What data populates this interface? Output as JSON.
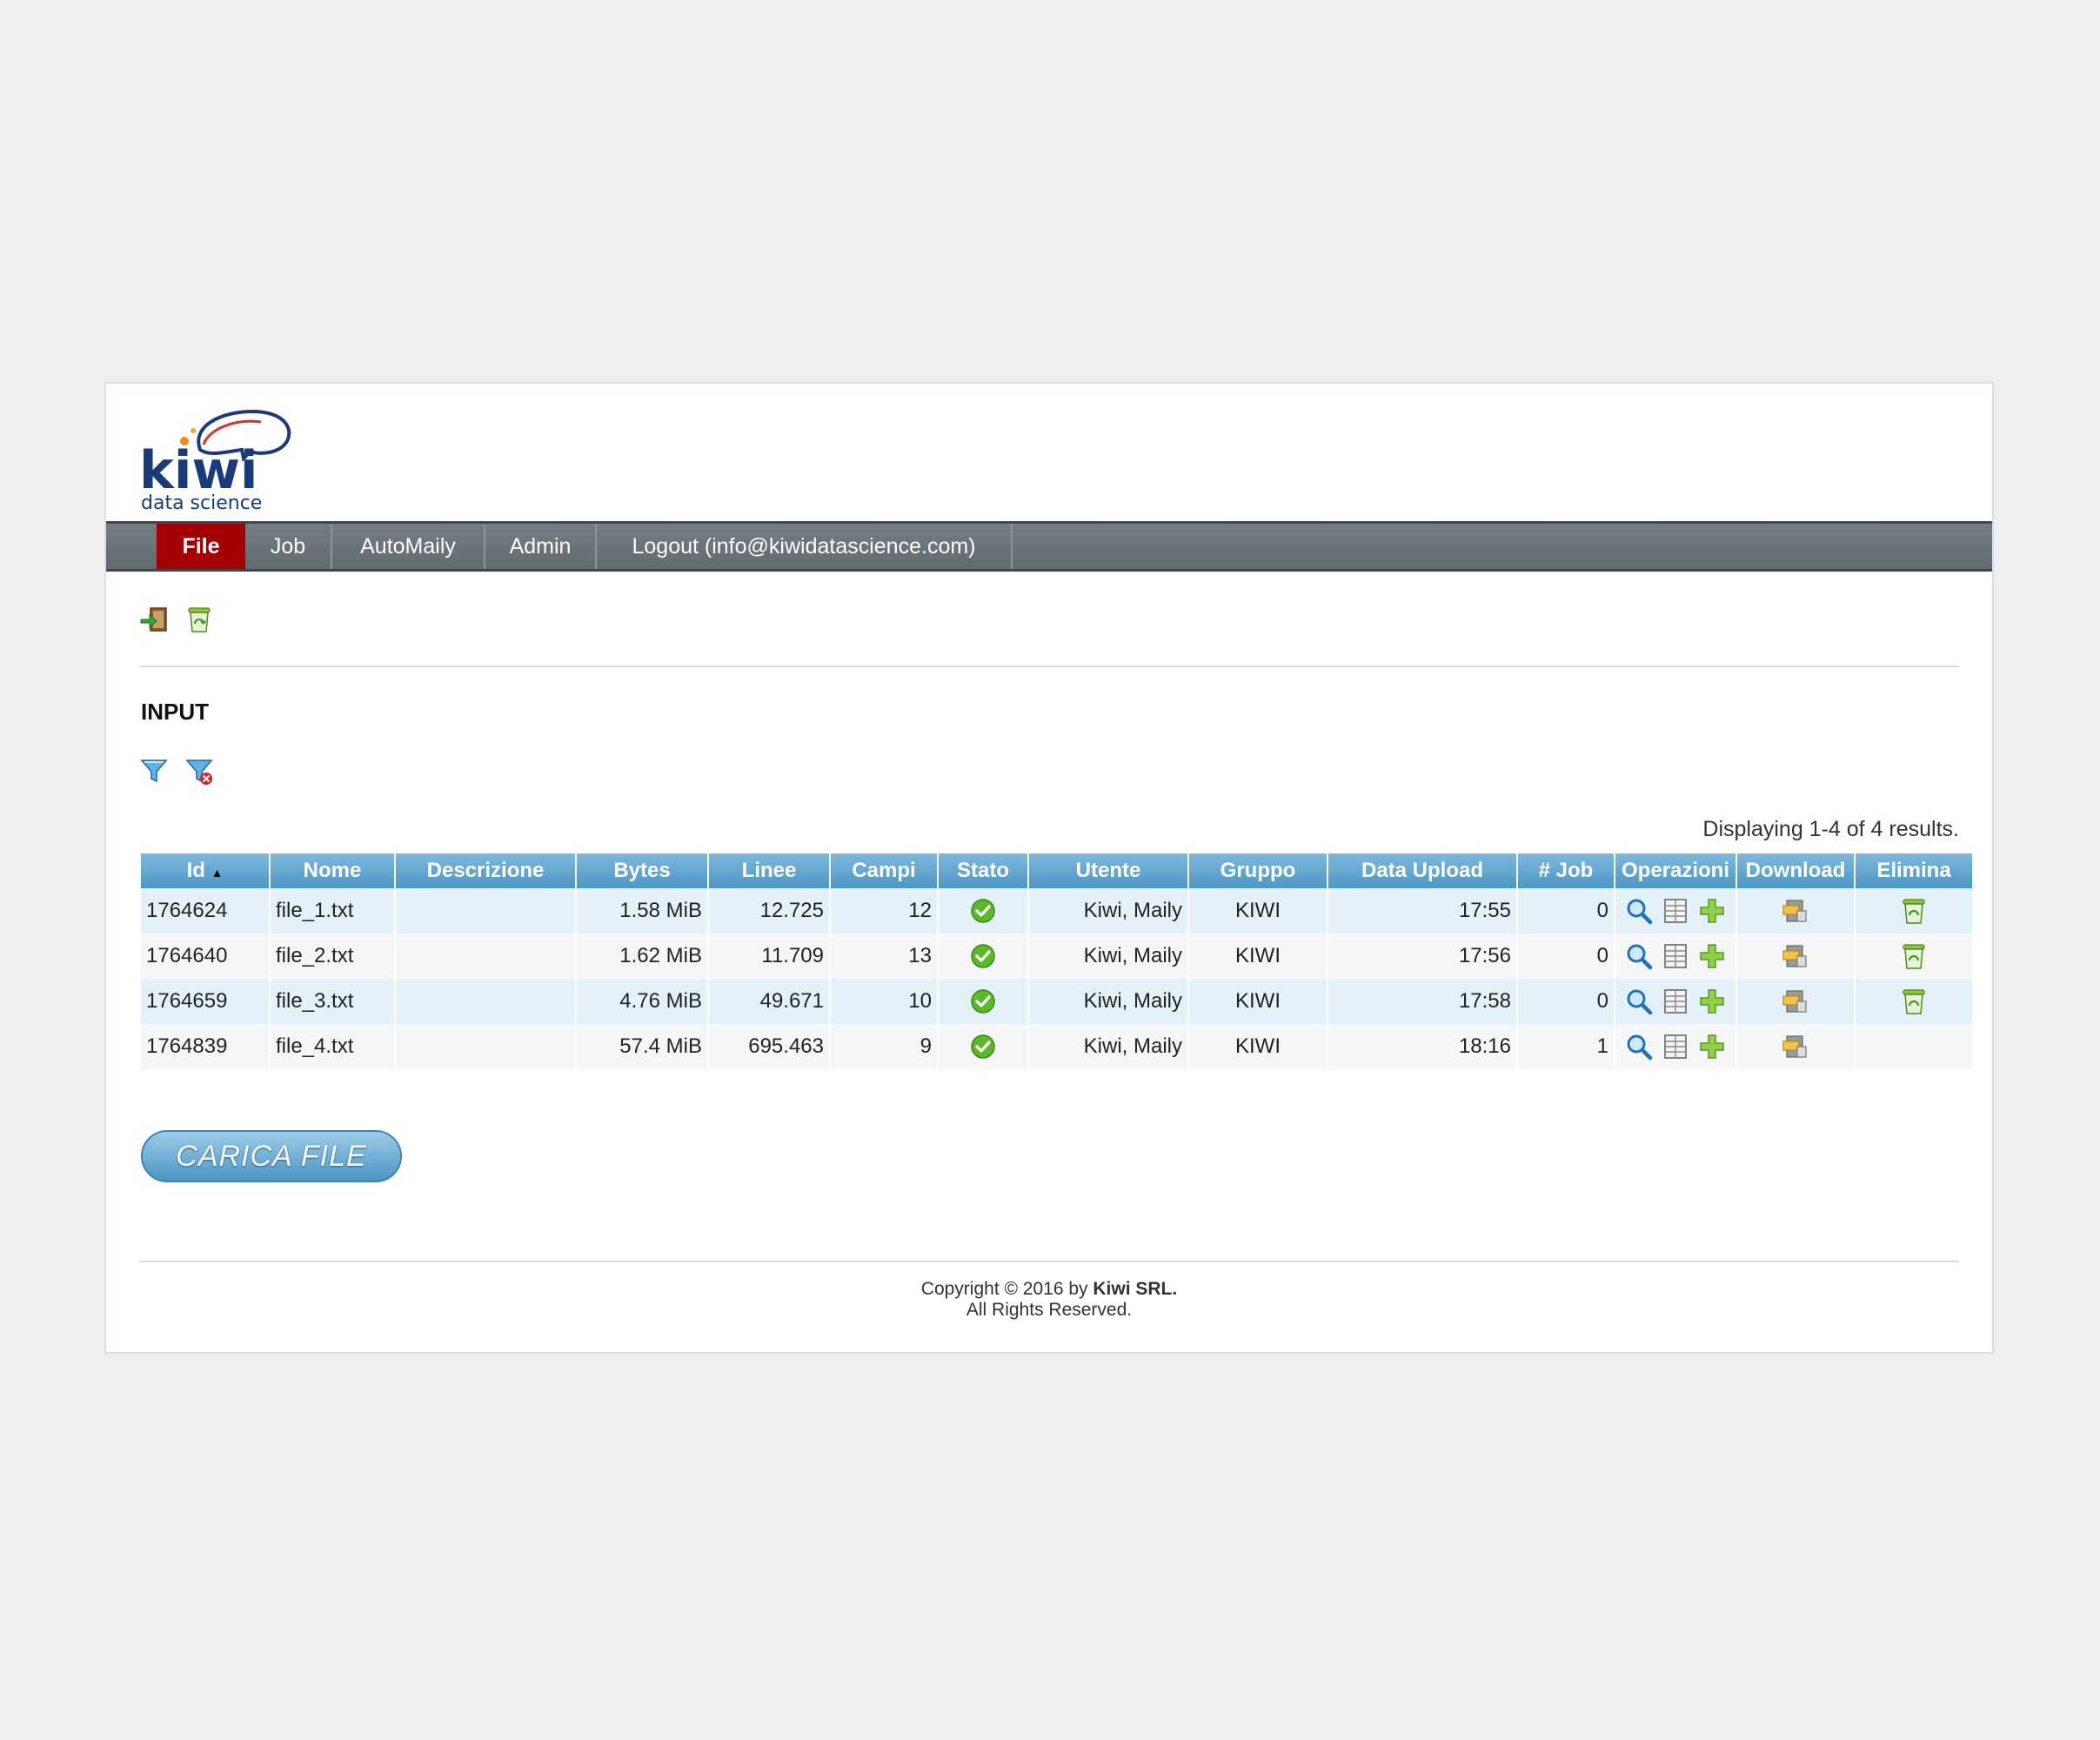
{
  "logo": {
    "word": "kiwi",
    "sub": "data science"
  },
  "nav": [
    {
      "label": "File",
      "active": true
    },
    {
      "label": "Job"
    },
    {
      "label": "AutoMaily"
    },
    {
      "label": "Admin"
    },
    {
      "label": "Logout (info@kiwidatascience.com)"
    }
  ],
  "toolbar": {
    "icons": [
      "import-icon",
      "recycle-bin-icon"
    ]
  },
  "section": {
    "title": "INPUT",
    "filter_icons": [
      "filter-icon",
      "clear-filter-icon"
    ]
  },
  "table": {
    "summary": "Displaying 1-4 of 4 results.",
    "columns": [
      "Id",
      "Nome",
      "Descrizione",
      "Bytes",
      "Linee",
      "Campi",
      "Stato",
      "Utente",
      "Gruppo",
      "Data Upload",
      "# Job",
      "Operazioni",
      "Download",
      "Elimina"
    ],
    "sort_column": "Id",
    "sort_indicator": "▲",
    "rows": [
      {
        "id": "1764624",
        "nome": "file_1.txt",
        "descrizione": "",
        "bytes": "1.58 MiB",
        "linee": "12.725",
        "campi": "12",
        "stato": "ok",
        "utente": "Kiwi, Maily",
        "gruppo": "KIWI",
        "data_upload": "17:55",
        "job": "0",
        "deletable": true
      },
      {
        "id": "1764640",
        "nome": "file_2.txt",
        "descrizione": "",
        "bytes": "1.62 MiB",
        "linee": "11.709",
        "campi": "13",
        "stato": "ok",
        "utente": "Kiwi, Maily",
        "gruppo": "KIWI",
        "data_upload": "17:56",
        "job": "0",
        "deletable": true
      },
      {
        "id": "1764659",
        "nome": "file_3.txt",
        "descrizione": "",
        "bytes": "4.76 MiB",
        "linee": "49.671",
        "campi": "10",
        "stato": "ok",
        "utente": "Kiwi, Maily",
        "gruppo": "KIWI",
        "data_upload": "17:58",
        "job": "0",
        "deletable": true
      },
      {
        "id": "1764839",
        "nome": "file_4.txt",
        "descrizione": "",
        "bytes": "57.4 MiB",
        "linee": "695.463",
        "campi": "9",
        "stato": "ok",
        "utente": "Kiwi, Maily",
        "gruppo": "KIWI",
        "data_upload": "18:16",
        "job": "1",
        "deletable": false
      }
    ]
  },
  "upload_button": {
    "label": "CARICA FILE"
  },
  "footer": {
    "copyright_prefix": "Copyright © 2016 by ",
    "company": "Kiwi SRL.",
    "rights": "All Rights Reserved."
  },
  "colors": {
    "nav_active": "#a30006",
    "header_blue": "#4d96c4",
    "logo_navy": "#1a3a7a",
    "logo_orange": "#f08a1c"
  }
}
